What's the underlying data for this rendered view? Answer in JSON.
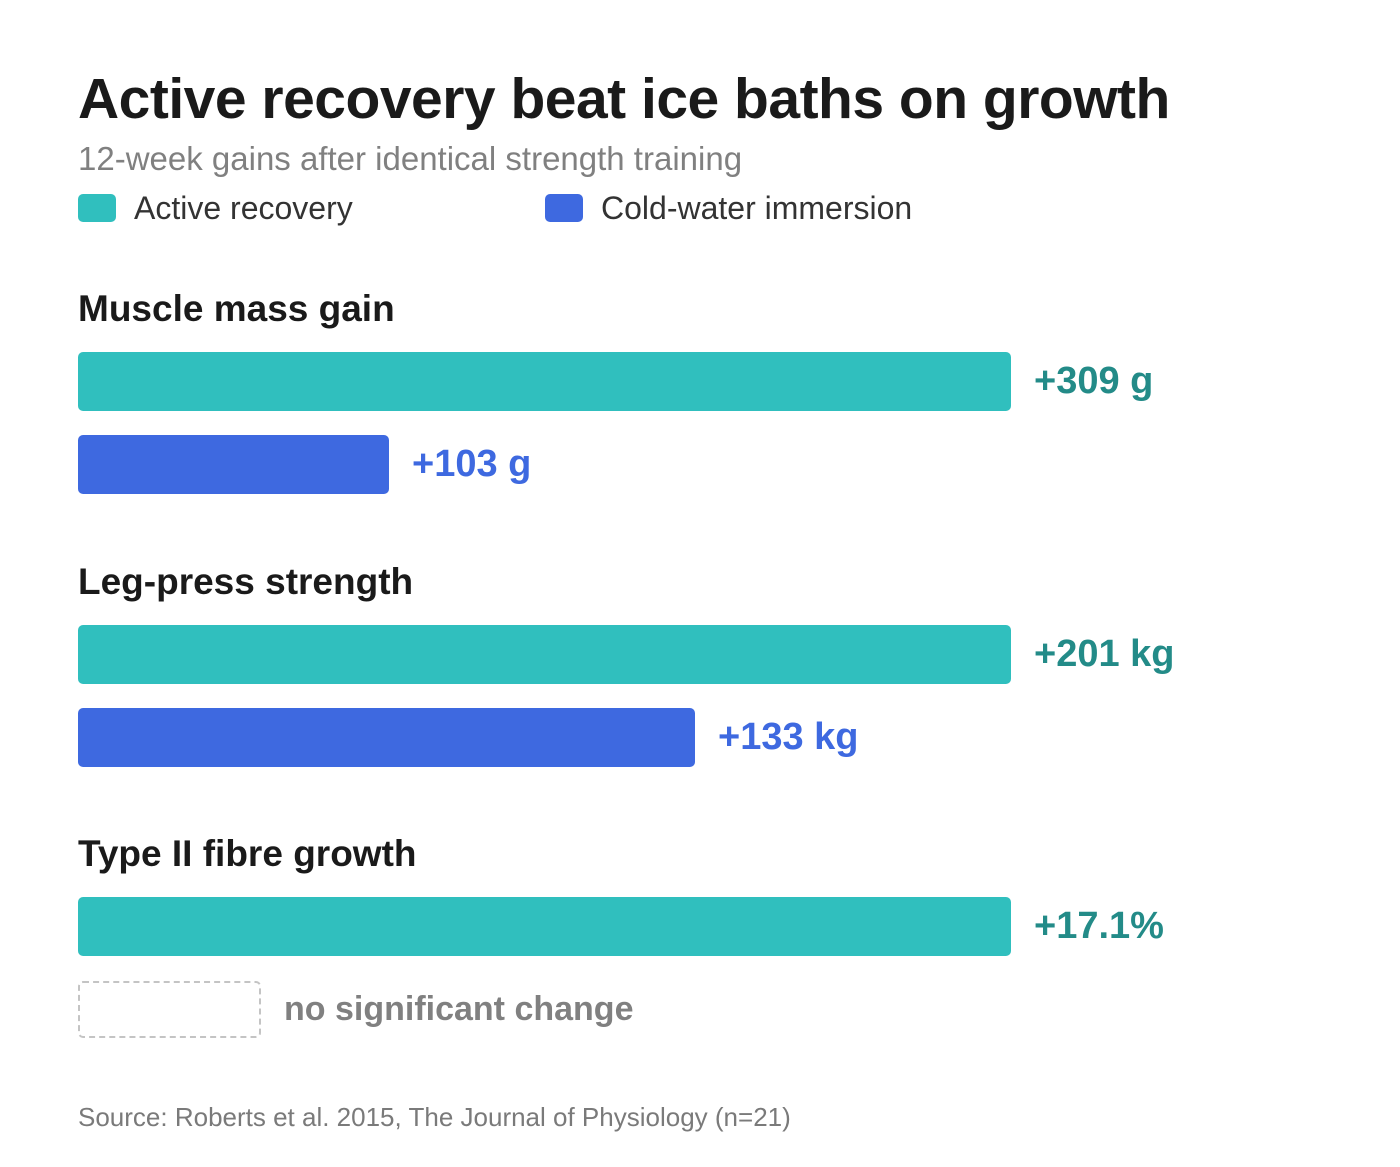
{
  "chart_data": {
    "type": "bar",
    "orientation": "horizontal",
    "title": "Active recovery beat ice baths on growth",
    "subtitle": "12-week gains after identical strength training",
    "source": "Source: Roberts et al. 2015, The Journal of Physiology (n=21)",
    "legend": {
      "placement": "top-left",
      "entries": [
        {
          "name": "Active recovery",
          "color": "#30bfbe"
        },
        {
          "name": "Cold-water immersion",
          "color": "#3e69e0"
        }
      ]
    },
    "series_colors": {
      "active": "#30bfbe",
      "cold": "#3e69e0"
    },
    "label_colors": {
      "active": "#238b88",
      "cold": "#3e69e0"
    },
    "grid": false,
    "groups": [
      {
        "title": "Muscle mass gain",
        "bars": [
          {
            "series": "active",
            "value": 309,
            "label": "+309 g"
          },
          {
            "series": "cold",
            "value": 103,
            "label": "+103 g"
          }
        ]
      },
      {
        "title": "Leg-press strength",
        "bars": [
          {
            "series": "active",
            "value": 201,
            "label": "+201 kg"
          },
          {
            "series": "cold",
            "value": 133,
            "label": "+133 kg"
          }
        ]
      },
      {
        "title": "Type II fibre growth",
        "bars": [
          {
            "series": "active",
            "value": 17.1,
            "label": "+17.1%"
          },
          {
            "series": "cold",
            "value": null,
            "label": "no significant change"
          }
        ]
      }
    ]
  }
}
